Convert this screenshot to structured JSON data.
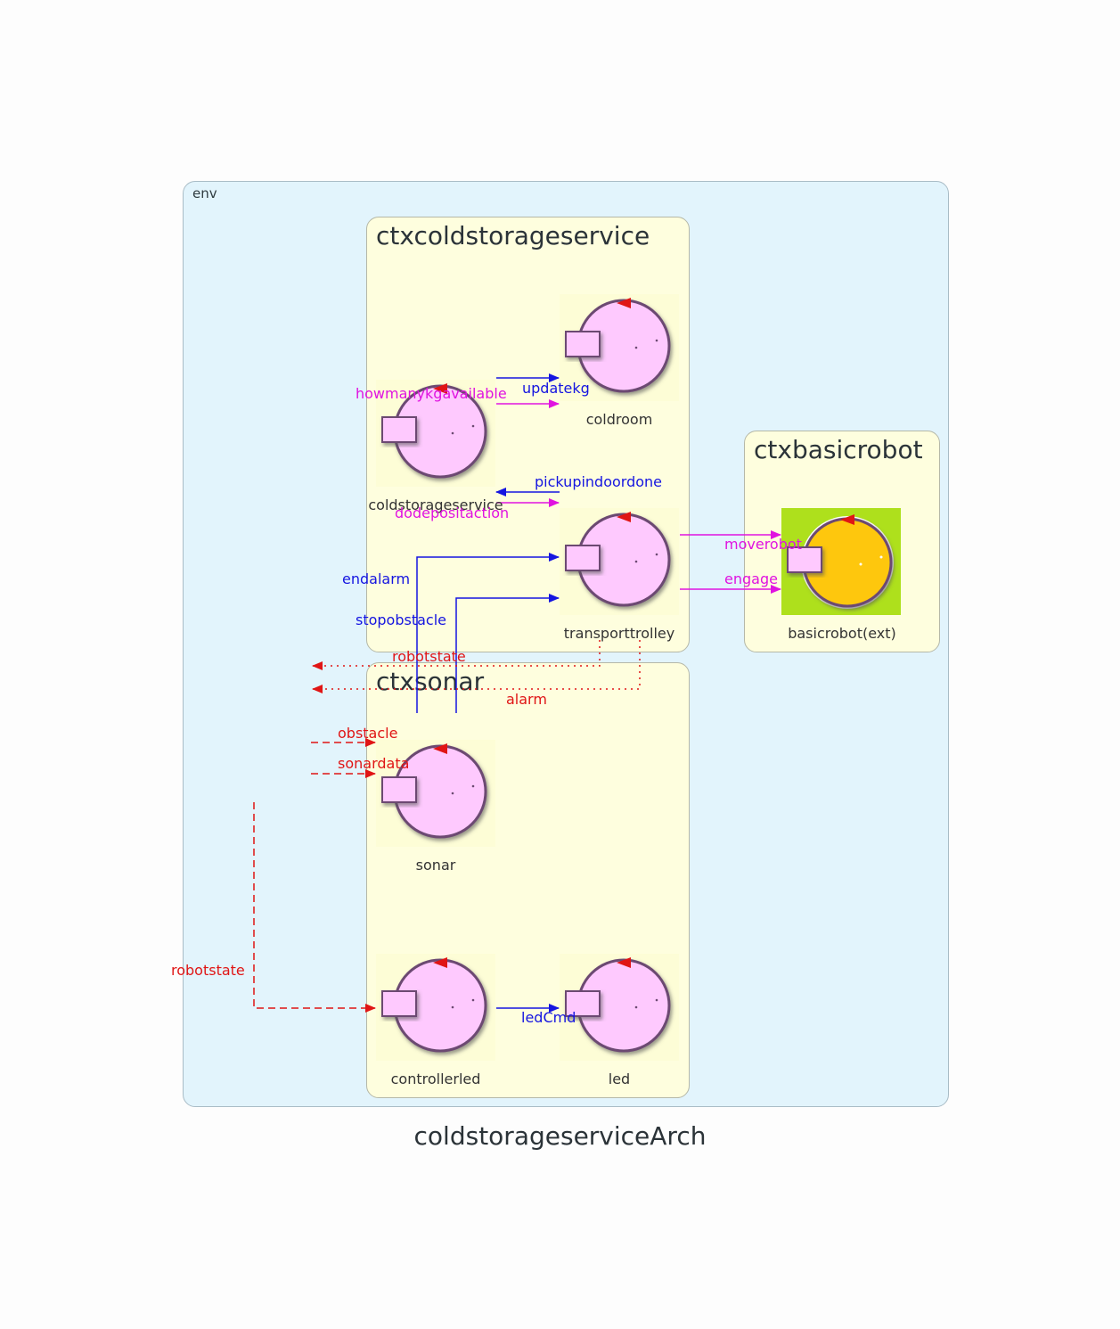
{
  "diagram": {
    "title": "coldstorageserviceArch",
    "env_label": "env",
    "contexts": {
      "ctxcoldstorageservice": "ctxcoldstorageservice",
      "ctxbasicrobot": "ctxbasicrobot",
      "ctxsonar": "ctxsonar"
    },
    "actors": {
      "coldroom": "coldroom",
      "coldstorageservice": "coldstorageservice",
      "transporttrolley": "transporttrolley",
      "basicrobot": "basicrobot(ext)",
      "sonar": "sonar",
      "controllerled": "controllerled",
      "led": "led"
    },
    "edges": {
      "updatekg": "updatekg",
      "howmanykgavailable": "howmanykgavailable",
      "pickupindoordone": "pickupindoordone",
      "dodepositaction": "dodepositaction",
      "moverobot": "moverobot",
      "engage": "engage",
      "endalarm": "endalarm",
      "stopobstacle": "stopobstacle",
      "robotstate_1": "robotstate",
      "alarm": "alarm",
      "obstacle": "obstacle",
      "sonardata": "sonardata",
      "robotstate_2": "robotstate",
      "ledCmd": "ledCmd"
    },
    "colors": {
      "request": "#1515e0",
      "dispatch": "#e013e0",
      "event": "#e01515",
      "actor_fill": "#fec9fe",
      "external_fill": "#fec70f",
      "external_bg": "#aee01c"
    }
  }
}
